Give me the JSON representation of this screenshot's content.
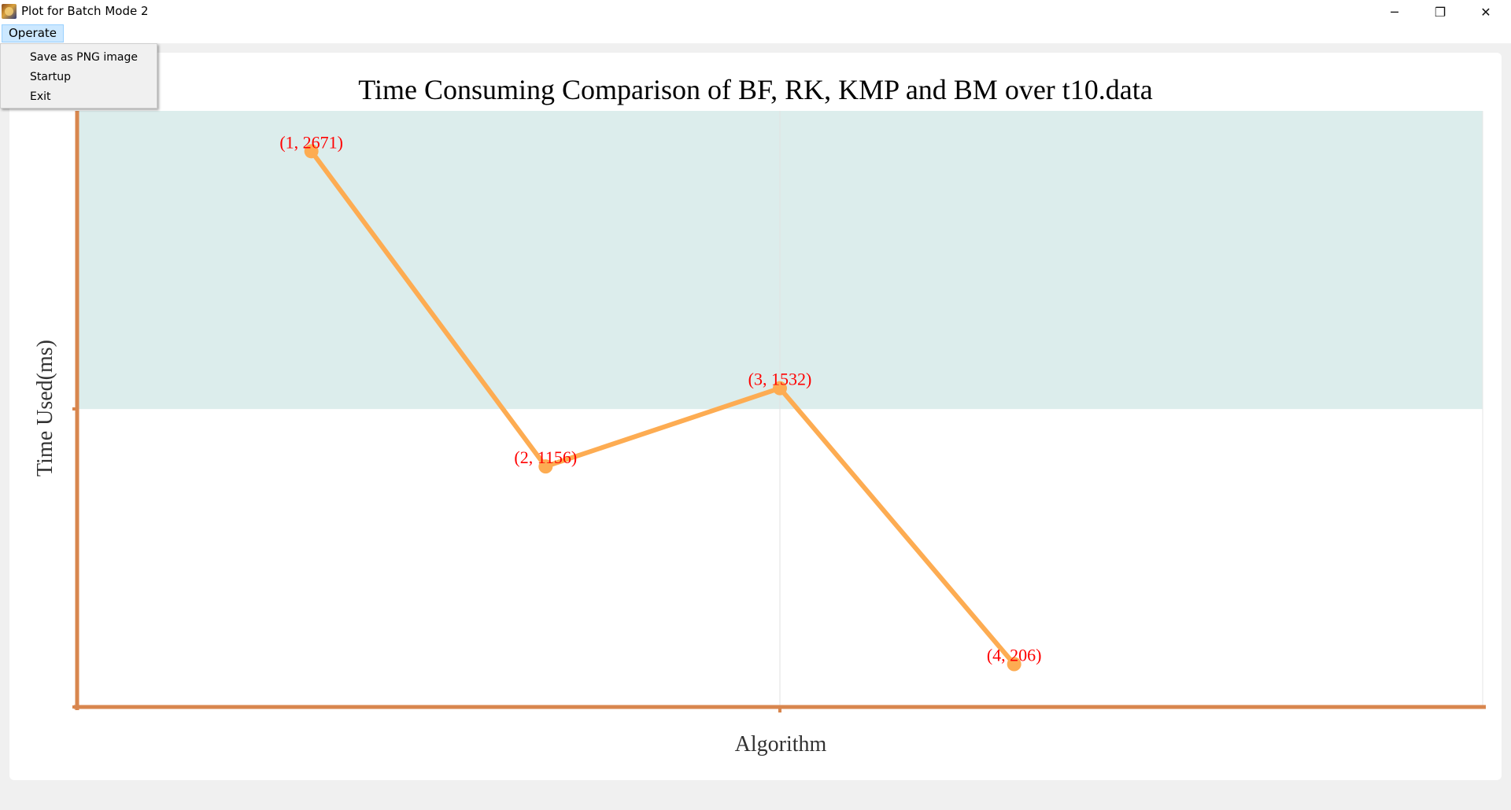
{
  "window": {
    "title": "Plot for Batch Mode 2",
    "minimize_glyph": "─",
    "restore_glyph": "❐",
    "close_glyph": "✕"
  },
  "menubar": {
    "operate_label": "Operate"
  },
  "dropdown": {
    "items": [
      {
        "label": "Save as PNG image"
      },
      {
        "label": "Startup"
      },
      {
        "label": "Exit"
      }
    ]
  },
  "colors": {
    "axis": "#d8864e",
    "line": "#fdac52",
    "label": "#ff0000",
    "band": "#dcedec"
  },
  "chart_data": {
    "type": "line",
    "title": "Time Consuming Comparison of BF, RK, KMP and BM over t10.data",
    "xlabel": "Algorithm",
    "ylabel": "Time Used(ms)",
    "xlim": [
      0,
      6
    ],
    "ylim": [
      0,
      2865
    ],
    "grid": true,
    "band_y_range": [
      1432,
      2865
    ],
    "points": [
      {
        "x": 1,
        "y": 2671,
        "label": "(1, 2671)"
      },
      {
        "x": 2,
        "y": 1156,
        "label": "(2, 1156)"
      },
      {
        "x": 3,
        "y": 1532,
        "label": "(3, 1532)"
      },
      {
        "x": 4,
        "y": 206,
        "label": "(4, 206)"
      }
    ]
  }
}
